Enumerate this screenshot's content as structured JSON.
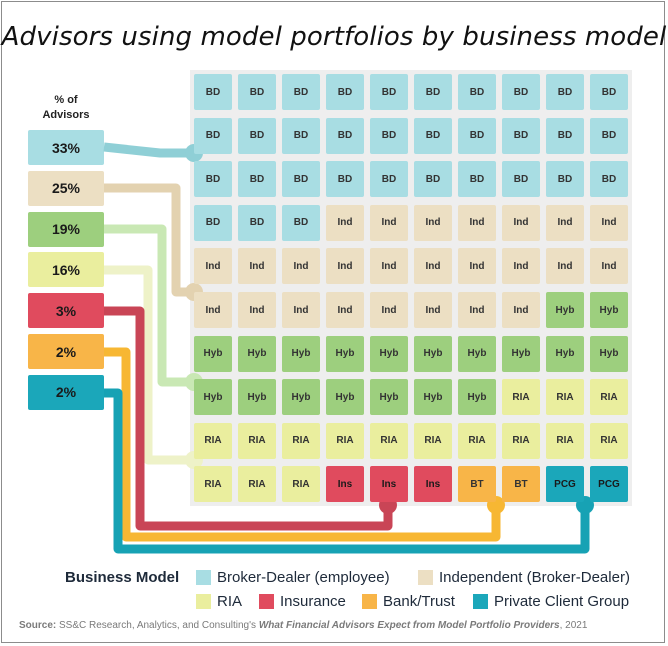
{
  "title": "Advisors using model portfolios by business model",
  "pct_header": "% of\nAdvisors",
  "chart_data": {
    "type": "waffle",
    "title": "Advisors using model portfolios by business model",
    "ylabel": "% of Advisors",
    "grid": {
      "rows": 10,
      "cols": 10
    },
    "series": [
      {
        "code": "BD",
        "name": "Broker-Dealer (employee)",
        "percent_label": "33%",
        "value": 33,
        "color": "#a8dde3"
      },
      {
        "code": "Ind",
        "name": "Independent (Broker-Dealer)",
        "percent_label": "25%",
        "value": 25,
        "color": "#ecdfc3"
      },
      {
        "code": "Hyb",
        "name": "",
        "percent_label": "19%",
        "value": 19,
        "color": "#9dcf7e"
      },
      {
        "code": "RIA",
        "name": "RIA",
        "percent_label": "16%",
        "value": 16,
        "color": "#eaee9e"
      },
      {
        "code": "Ins",
        "name": "Insurance",
        "percent_label": "3%",
        "value": 3,
        "color": "#e04b5e"
      },
      {
        "code": "BT",
        "name": "Bank/Trust",
        "percent_label": "2%",
        "value": 2,
        "color": "#f8b548"
      },
      {
        "code": "PCG",
        "name": "Private Client Group",
        "percent_label": "2%",
        "value": 2,
        "color": "#1ba7ba"
      }
    ]
  },
  "legend": {
    "title": "Business Model",
    "items": [
      {
        "label": "Broker-Dealer (employee)",
        "color": "#a8dde3"
      },
      {
        "label": "Independent (Broker-Dealer)",
        "color": "#ecdfc3"
      },
      {
        "label": "RIA",
        "color": "#eaee9e"
      },
      {
        "label": "Insurance",
        "color": "#e04b5e"
      },
      {
        "label": "Bank/Trust",
        "color": "#f8b548"
      },
      {
        "label": "Private Client Group",
        "color": "#1ba7ba"
      }
    ]
  },
  "source": {
    "label": "Source:",
    "text": " SS&C Research, Analytics, and Consulting's ",
    "italic": "What  Financial Advisors Expect from Model Portfolio Providers",
    "suffix": ", 2021"
  }
}
